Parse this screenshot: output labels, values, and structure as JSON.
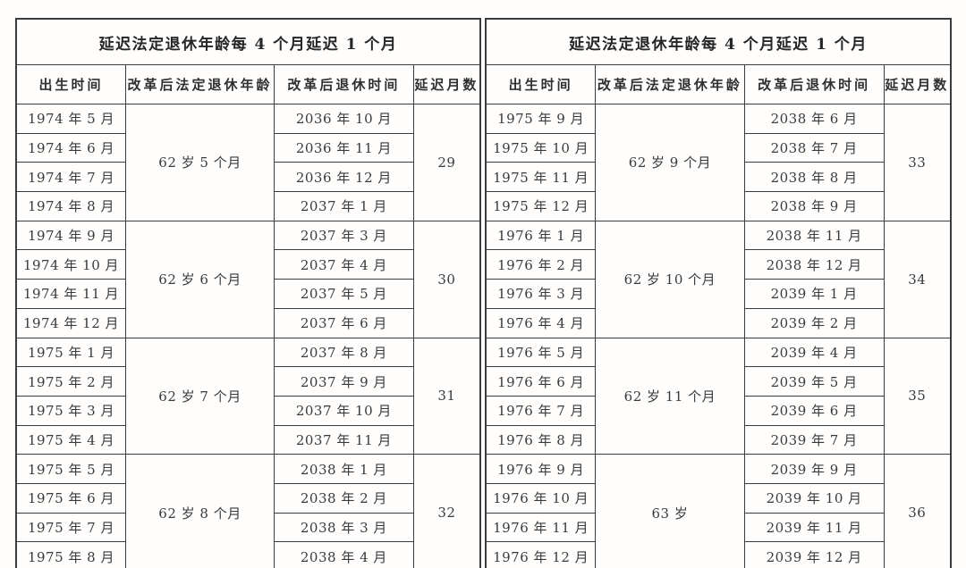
{
  "colors": {
    "border": "#3c3c3c",
    "text": "#3a3a3a",
    "title_text": "#262626",
    "background": "#fffefd"
  },
  "tables": [
    {
      "title": "延迟法定退休年龄每 4 个月延迟 1 个月",
      "columns": [
        "出生时间",
        "改革后法定退休年龄",
        "改革后退休时间",
        "延迟月数"
      ],
      "groups": [
        {
          "age": "62 岁 5 个月",
          "delay": "29",
          "rows": [
            {
              "birth": "1974 年 5 月",
              "retire": "2036 年 10 月"
            },
            {
              "birth": "1974 年 6 月",
              "retire": "2036 年 11 月"
            },
            {
              "birth": "1974 年 7 月",
              "retire": "2036 年 12 月"
            },
            {
              "birth": "1974 年 8 月",
              "retire": "2037 年 1 月"
            }
          ]
        },
        {
          "age": "62 岁 6 个月",
          "delay": "30",
          "rows": [
            {
              "birth": "1974 年 9 月",
              "retire": "2037 年 3 月"
            },
            {
              "birth": "1974 年 10 月",
              "retire": "2037 年 4 月"
            },
            {
              "birth": "1974 年 11 月",
              "retire": "2037 年 5 月"
            },
            {
              "birth": "1974 年 12 月",
              "retire": "2037 年 6 月"
            }
          ]
        },
        {
          "age": "62 岁 7 个月",
          "delay": "31",
          "rows": [
            {
              "birth": "1975 年 1 月",
              "retire": "2037 年 8 月"
            },
            {
              "birth": "1975 年 2 月",
              "retire": "2037 年 9 月"
            },
            {
              "birth": "1975 年 3 月",
              "retire": "2037 年 10 月"
            },
            {
              "birth": "1975 年 4 月",
              "retire": "2037 年 11 月"
            }
          ]
        },
        {
          "age": "62 岁 8 个月",
          "delay": "32",
          "rows": [
            {
              "birth": "1975 年 5 月",
              "retire": "2038 年 1 月"
            },
            {
              "birth": "1975 年 6 月",
              "retire": "2038 年 2 月"
            },
            {
              "birth": "1975 年 7 月",
              "retire": "2038 年 3 月"
            },
            {
              "birth": "1975 年 8 月",
              "retire": "2038 年 4 月"
            }
          ]
        }
      ]
    },
    {
      "title": "延迟法定退休年龄每 4 个月延迟 1 个月",
      "columns": [
        "出生时间",
        "改革后法定退休年龄",
        "改革后退休时间",
        "延迟月数"
      ],
      "groups": [
        {
          "age": "62 岁 9 个月",
          "delay": "33",
          "rows": [
            {
              "birth": "1975 年 9 月",
              "retire": "2038 年 6 月"
            },
            {
              "birth": "1975 年 10 月",
              "retire": "2038 年 7 月"
            },
            {
              "birth": "1975 年 11 月",
              "retire": "2038 年 8 月"
            },
            {
              "birth": "1975 年 12 月",
              "retire": "2038 年 9 月"
            }
          ]
        },
        {
          "age": "62 岁 10 个月",
          "delay": "34",
          "rows": [
            {
              "birth": "1976 年 1 月",
              "retire": "2038 年 11 月"
            },
            {
              "birth": "1976 年 2 月",
              "retire": "2038 年 12 月"
            },
            {
              "birth": "1976 年 3 月",
              "retire": "2039 年 1 月"
            },
            {
              "birth": "1976 年 4 月",
              "retire": "2039 年 2 月"
            }
          ]
        },
        {
          "age": "62 岁 11 个月",
          "delay": "35",
          "rows": [
            {
              "birth": "1976 年 5 月",
              "retire": "2039 年 4 月"
            },
            {
              "birth": "1976 年 6 月",
              "retire": "2039 年 5 月"
            },
            {
              "birth": "1976 年 7 月",
              "retire": "2039 年 6 月"
            },
            {
              "birth": "1976 年 8 月",
              "retire": "2039 年 7 月"
            }
          ]
        },
        {
          "age": "63 岁",
          "delay": "36",
          "rows": [
            {
              "birth": "1976 年 9 月",
              "retire": "2039 年 9 月"
            },
            {
              "birth": "1976 年 10 月",
              "retire": "2039 年 10 月"
            },
            {
              "birth": "1976 年 11 月",
              "retire": "2039 年 11 月"
            },
            {
              "birth": "1976 年 12 月",
              "retire": "2039 年 12 月"
            }
          ]
        }
      ]
    }
  ]
}
